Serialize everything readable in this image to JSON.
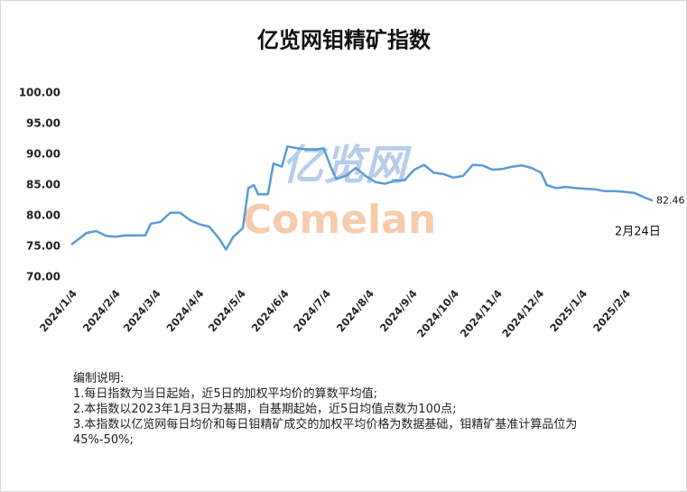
{
  "chart_data": {
    "type": "line",
    "title": "亿览网钼精矿指数",
    "x": [
      "2024/1/4",
      "2024/1/8",
      "2024/1/15",
      "2024/1/22",
      "2024/1/29",
      "2024/2/5",
      "2024/2/12",
      "2024/2/19",
      "2024/2/26",
      "2024/3/1",
      "2024/3/8",
      "2024/3/15",
      "2024/3/22",
      "2024/3/29",
      "2024/4/5",
      "2024/4/12",
      "2024/4/19",
      "2024/4/24",
      "2024/4/29",
      "2024/5/6",
      "2024/5/10",
      "2024/5/14",
      "2024/5/17",
      "2024/5/24",
      "2024/5/28",
      "2024/6/3",
      "2024/6/7",
      "2024/6/14",
      "2024/6/21",
      "2024/6/28",
      "2024/7/3",
      "2024/7/8",
      "2024/7/12",
      "2024/7/19",
      "2024/7/26",
      "2024/8/2",
      "2024/8/9",
      "2024/8/16",
      "2024/8/23",
      "2024/8/30",
      "2024/9/6",
      "2024/9/13",
      "2024/9/20",
      "2024/9/27",
      "2024/10/4",
      "2024/10/11",
      "2024/10/18",
      "2024/10/25",
      "2024/11/1",
      "2024/11/8",
      "2024/11/15",
      "2024/11/22",
      "2024/11/29",
      "2024/12/6",
      "2024/12/10",
      "2024/12/17",
      "2024/12/24",
      "2024/12/31",
      "2025/1/7",
      "2025/1/14",
      "2025/1/21",
      "2025/1/28",
      "2025/2/4",
      "2025/2/11",
      "2025/2/18",
      "2025/2/24"
    ],
    "series": [
      {
        "name": "亿览网钼精矿指数",
        "color": "#5b9bd5",
        "values": [
          75.3,
          76.0,
          77.2,
          77.5,
          76.7,
          76.6,
          76.8,
          76.8,
          76.8,
          78.7,
          79.0,
          80.5,
          80.5,
          79.3,
          78.6,
          78.2,
          76.3,
          74.5,
          76.5,
          78.0,
          84.5,
          85.0,
          83.5,
          83.5,
          88.5,
          88.0,
          91.3,
          91.0,
          90.8,
          90.8,
          91.0,
          88.0,
          86.0,
          86.5,
          87.8,
          86.5,
          85.5,
          85.2,
          85.7,
          85.8,
          87.5,
          88.3,
          87.0,
          86.8,
          86.2,
          86.5,
          88.3,
          88.2,
          87.5,
          87.6,
          88.0,
          88.2,
          87.8,
          87.0,
          85.0,
          84.5,
          84.7,
          84.5,
          84.4,
          84.3,
          84.0,
          84.0,
          83.9,
          83.7,
          83.0,
          82.46
        ]
      }
    ],
    "xlim": [
      "2024/1/4",
      "2025/2/24"
    ],
    "xticks": [
      "2024/1/4",
      "2024/2/4",
      "2024/3/4",
      "2024/4/4",
      "2024/5/4",
      "2024/6/4",
      "2024/7/4",
      "2024/8/4",
      "2024/9/4",
      "2024/10/4",
      "2024/11/4",
      "2024/12/4",
      "2025/1/4",
      "2025/2/4"
    ],
    "ylim": [
      70,
      100
    ],
    "yticks": [
      {
        "value": 70,
        "label": "70.00"
      },
      {
        "value": 75,
        "label": "75.00"
      },
      {
        "value": 80,
        "label": "80.00"
      },
      {
        "value": 85,
        "label": "85.00"
      },
      {
        "value": 90,
        "label": "90.00"
      },
      {
        "value": 95,
        "label": "95.00"
      },
      {
        "value": 100,
        "label": "100.00"
      }
    ],
    "end_label": {
      "value": 82.46,
      "label": "82.46"
    },
    "date_annotation": "2月24日",
    "watermark_cn": "亿览网",
    "watermark_en": "Comelan",
    "notes": [
      "编制说明:",
      "1.每日指数为当日起始，近5日的加权平均价的算数平均值;",
      "2.本指数以2023年1月3日为基期，自基期起始，近5日均值点数为100点;",
      "3.本指数以亿览网每日均价和每日钼精矿成交的加权平均价格为数据基础，钼精矿基准计算品位为45%-50%;"
    ]
  }
}
